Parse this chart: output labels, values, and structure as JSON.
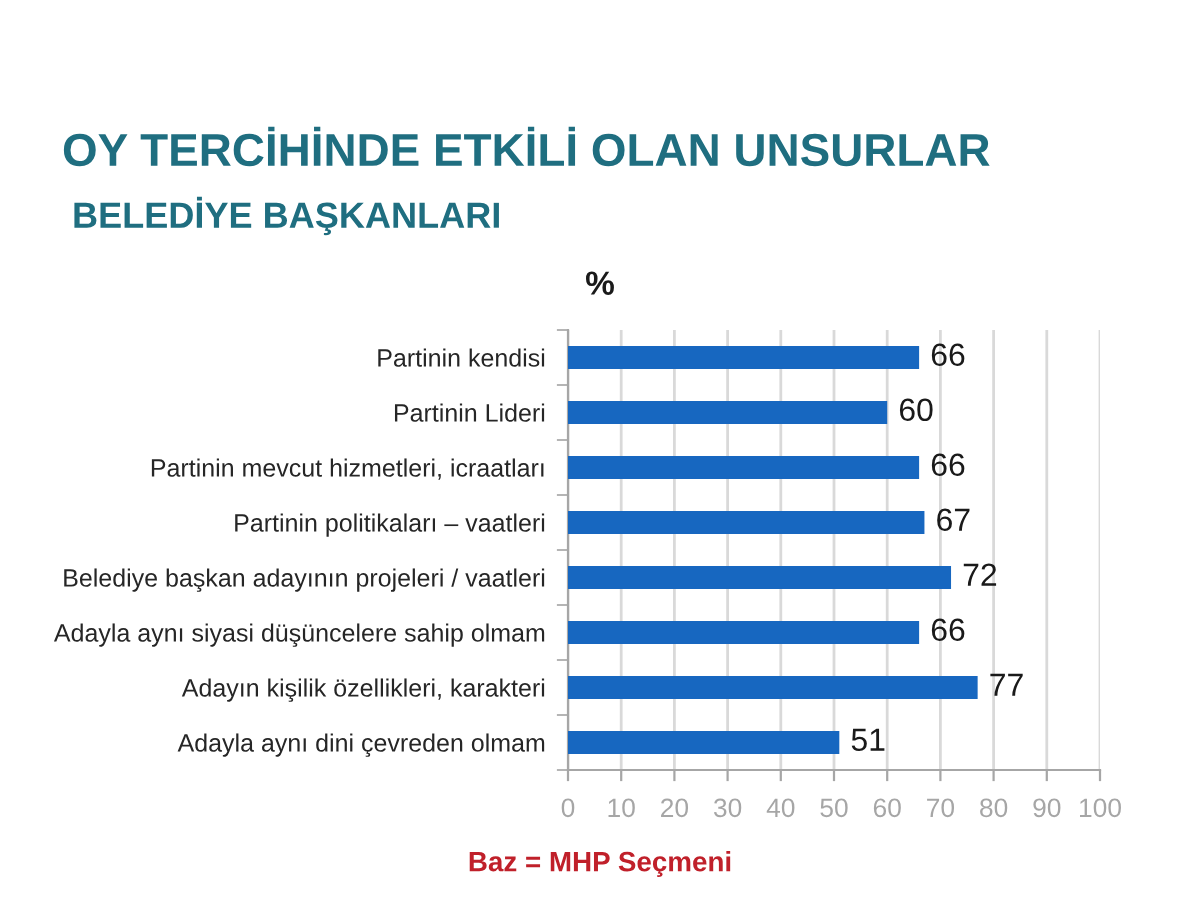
{
  "chart_data": {
    "type": "bar",
    "orientation": "horizontal",
    "title": "OY TERCİHİNDE ETKİLİ OLAN UNSURLAR",
    "subtitle": "BELEDİYE BAŞKANLARI",
    "xlabel": "%",
    "categories": [
      "Partinin kendisi",
      "Partinin Lideri",
      "Partinin mevcut hizmetleri, icraatları",
      "Partinin politikaları – vaatleri",
      "Belediye başkan adayının projeleri / vaatleri",
      "Adayla aynı siyasi düşüncelere sahip olmam",
      "Adayın kişilik özellikleri, karakteri",
      "Adayla aynı dini çevreden olmam"
    ],
    "values": [
      66,
      60,
      66,
      67,
      72,
      66,
      77,
      51
    ],
    "color": "#1767c0",
    "xlim": [
      0,
      100
    ],
    "xticks": [
      0,
      10,
      20,
      30,
      40,
      50,
      60,
      70,
      80,
      90,
      100
    ],
    "grid": "x",
    "data_labels": true,
    "annotations": [
      "Baz = MHP Seçmeni"
    ]
  }
}
